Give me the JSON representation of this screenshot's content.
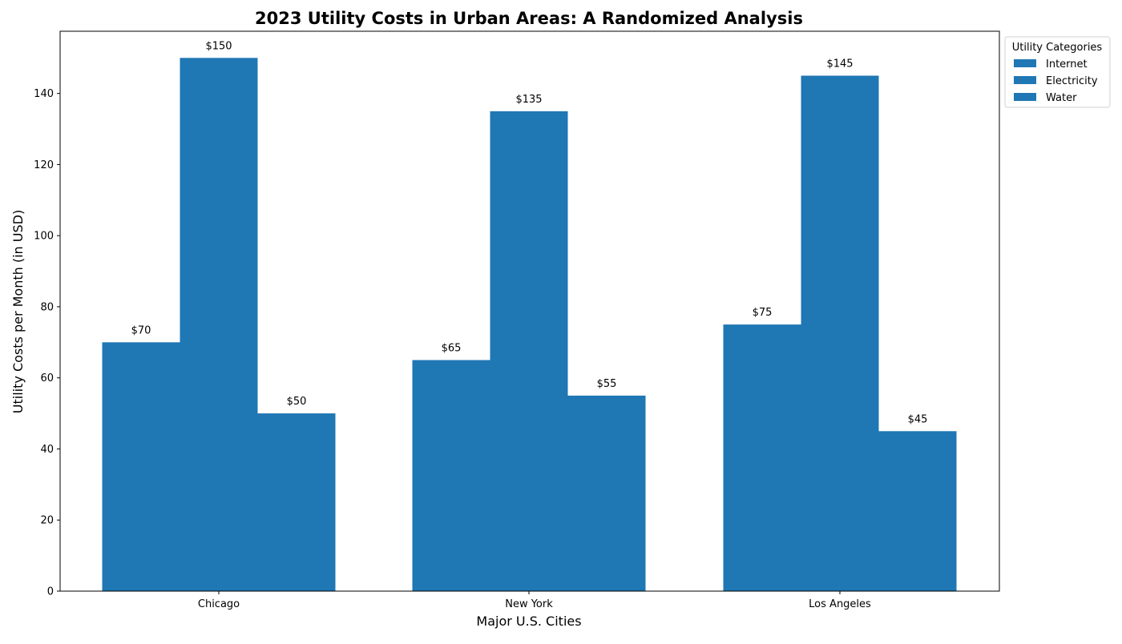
{
  "chart_data": {
    "type": "bar",
    "title": "2023 Utility Costs in Urban Areas: A Randomized Analysis",
    "xlabel": "Major U.S. Cities",
    "ylabel": "Utility Costs per Month (in USD)",
    "categories": [
      "Chicago",
      "New York",
      "Los Angeles"
    ],
    "series": [
      {
        "name": "Internet",
        "values": [
          70,
          65,
          75
        ],
        "labels": [
          "$70",
          "$65",
          "$75"
        ]
      },
      {
        "name": "Electricity",
        "values": [
          150,
          135,
          145
        ],
        "labels": [
          "$150",
          "$135",
          "$145"
        ]
      },
      {
        "name": "Water",
        "values": [
          50,
          55,
          45
        ],
        "labels": [
          "$50",
          "$55",
          "$45"
        ]
      }
    ],
    "ylim": [
      0,
      157.5
    ],
    "yticks": [
      0,
      20,
      40,
      60,
      80,
      100,
      120,
      140
    ],
    "legend": {
      "title": "Utility Categories",
      "placement": "outside-top-right"
    },
    "bar_color": "#1f77b4",
    "grid": false
  }
}
